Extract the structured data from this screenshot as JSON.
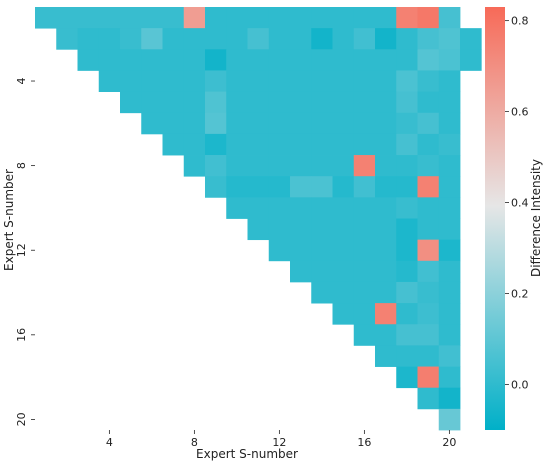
{
  "chart_data": {
    "type": "heatmap",
    "title": "",
    "xlabel": "Expert S-number",
    "ylabel": "Expert S-number",
    "x_tick_labels": [
      "4",
      "8",
      "12",
      "16",
      "20"
    ],
    "y_tick_labels": [
      "4",
      "8",
      "12",
      "16",
      "20"
    ],
    "colorbar_label": "Difference Intensity",
    "colorbar_ticks": [
      "0.0",
      "0.2",
      "0.4",
      "0.6",
      "0.8"
    ],
    "colorbar_range": [
      -0.1,
      0.83
    ],
    "colormap": [
      "#00b0c8",
      "#e6e6e6",
      "#f76a58"
    ],
    "n": 20,
    "grid": false,
    "default_value": 0.0,
    "rows": [
      {
        "row": 1,
        "values": [
          0.02,
          0.02,
          0.02,
          0.02,
          0.02,
          0.02,
          0.02,
          0.65,
          0.0,
          0.0,
          0.0,
          0.0,
          0.0,
          0.0,
          0.0,
          0.0,
          0.0,
          0.75,
          0.78,
          0.05
        ]
      },
      {
        "row": 2,
        "values": [
          0.02,
          0.0,
          0.0,
          0.02,
          0.09,
          0.0,
          0.0,
          0.0,
          0.0,
          0.05,
          0.0,
          0.0,
          -0.06,
          0.0,
          0.04,
          -0.06,
          0.0,
          0.05,
          0.07,
          0.0
        ]
      },
      {
        "row": 3,
        "values": [
          0.0,
          0.0,
          0.0,
          0.0,
          0.0,
          0.0,
          -0.06,
          0.0,
          0.0,
          0.0,
          0.0,
          0.0,
          0.0,
          0.0,
          0.0,
          0.0,
          0.08,
          0.06,
          0.0
        ]
      },
      {
        "row": 4,
        "values": [
          0.0,
          0.0,
          0.0,
          0.0,
          0.0,
          0.03,
          0.0,
          0.0,
          0.0,
          0.0,
          0.0,
          0.0,
          0.0,
          0.0,
          0.06,
          0.02,
          0.0
        ]
      },
      {
        "row": 5,
        "values": [
          0.0,
          0.0,
          0.0,
          0.0,
          0.07,
          0.0,
          0.0,
          0.0,
          0.0,
          0.0,
          0.0,
          0.0,
          0.0,
          0.05,
          0.0,
          0.0
        ]
      },
      {
        "row": 6,
        "values": [
          0.0,
          0.0,
          0.0,
          0.08,
          0.0,
          0.0,
          0.0,
          0.0,
          0.0,
          0.0,
          0.0,
          0.0,
          0.02,
          0.05,
          0.0
        ]
      },
      {
        "row": 7,
        "values": [
          0.0,
          0.0,
          -0.04,
          0.0,
          0.0,
          0.0,
          0.0,
          0.0,
          0.0,
          0.0,
          0.0,
          0.05,
          0.0,
          0.02
        ]
      },
      {
        "row": 8,
        "values": [
          0.0,
          0.04,
          0.0,
          0.0,
          0.0,
          0.0,
          0.0,
          0.0,
          0.75,
          0.0,
          0.0,
          0.02,
          0.0
        ]
      },
      {
        "row": 9,
        "values": [
          0.02,
          -0.02,
          -0.02,
          -0.02,
          0.06,
          0.06,
          -0.02,
          0.04,
          -0.02,
          -0.02,
          0.75,
          0.0
        ]
      },
      {
        "row": 10,
        "values": [
          0.0,
          0.0,
          0.0,
          0.0,
          0.0,
          0.0,
          0.0,
          0.0,
          0.02,
          0.0,
          0.0
        ]
      },
      {
        "row": 11,
        "values": [
          0.0,
          0.0,
          0.0,
          0.0,
          0.0,
          0.0,
          0.0,
          -0.04,
          0.0,
          0.0
        ]
      },
      {
        "row": 12,
        "values": [
          0.0,
          0.0,
          0.0,
          0.0,
          0.0,
          0.0,
          -0.04,
          0.7,
          -0.04
        ]
      },
      {
        "row": 13,
        "values": [
          0.0,
          0.0,
          0.0,
          0.0,
          0.0,
          -0.02,
          0.04,
          0.0
        ]
      },
      {
        "row": 14,
        "values": [
          0.0,
          0.0,
          0.0,
          0.0,
          0.05,
          0.02,
          0.0
        ]
      },
      {
        "row": 15,
        "values": [
          0.0,
          0.0,
          0.75,
          0.0,
          0.03,
          0.0
        ]
      },
      {
        "row": 16,
        "values": [
          0.0,
          0.0,
          0.05,
          0.05,
          0.0
        ]
      },
      {
        "row": 17,
        "values": [
          0.0,
          0.0,
          0.0,
          0.04
        ]
      },
      {
        "row": 18,
        "values": [
          -0.04,
          0.76,
          0.0
        ]
      },
      {
        "row": 19,
        "values": [
          0.0,
          -0.06
        ]
      },
      {
        "row": 20,
        "values": [
          0.12
        ]
      }
    ]
  }
}
